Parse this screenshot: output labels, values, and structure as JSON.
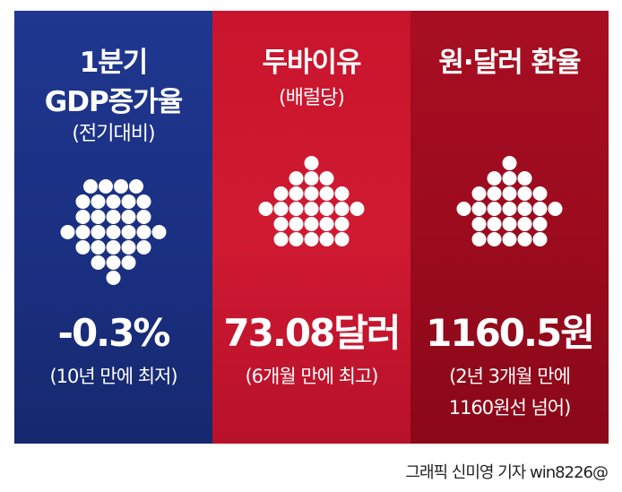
{
  "panels": [
    {
      "title_lines": [
        "1분기",
        "GDP증가율"
      ],
      "subtitle": "(전기대비)",
      "arrow_direction": "down",
      "value": "-0.3%",
      "note_lines": [
        "(10년 만에 최저)"
      ],
      "background": "#1a2f80"
    },
    {
      "title_lines": [
        "두바이유"
      ],
      "subtitle": "(배럴당)",
      "arrow_direction": "up",
      "value": "73.08달러",
      "note_lines": [
        "(6개월 만에 최고)"
      ],
      "background": "#d01a32"
    },
    {
      "title_lines": [
        "원·달러 환율"
      ],
      "subtitle": "",
      "arrow_direction": "up",
      "value": "1160.5원",
      "note_lines": [
        "(2년 3개월 만에",
        "1160원선 넘어)"
      ],
      "background": "#9c0b1e"
    }
  ],
  "credit": "그래픽 신미영 기자 win8226@"
}
